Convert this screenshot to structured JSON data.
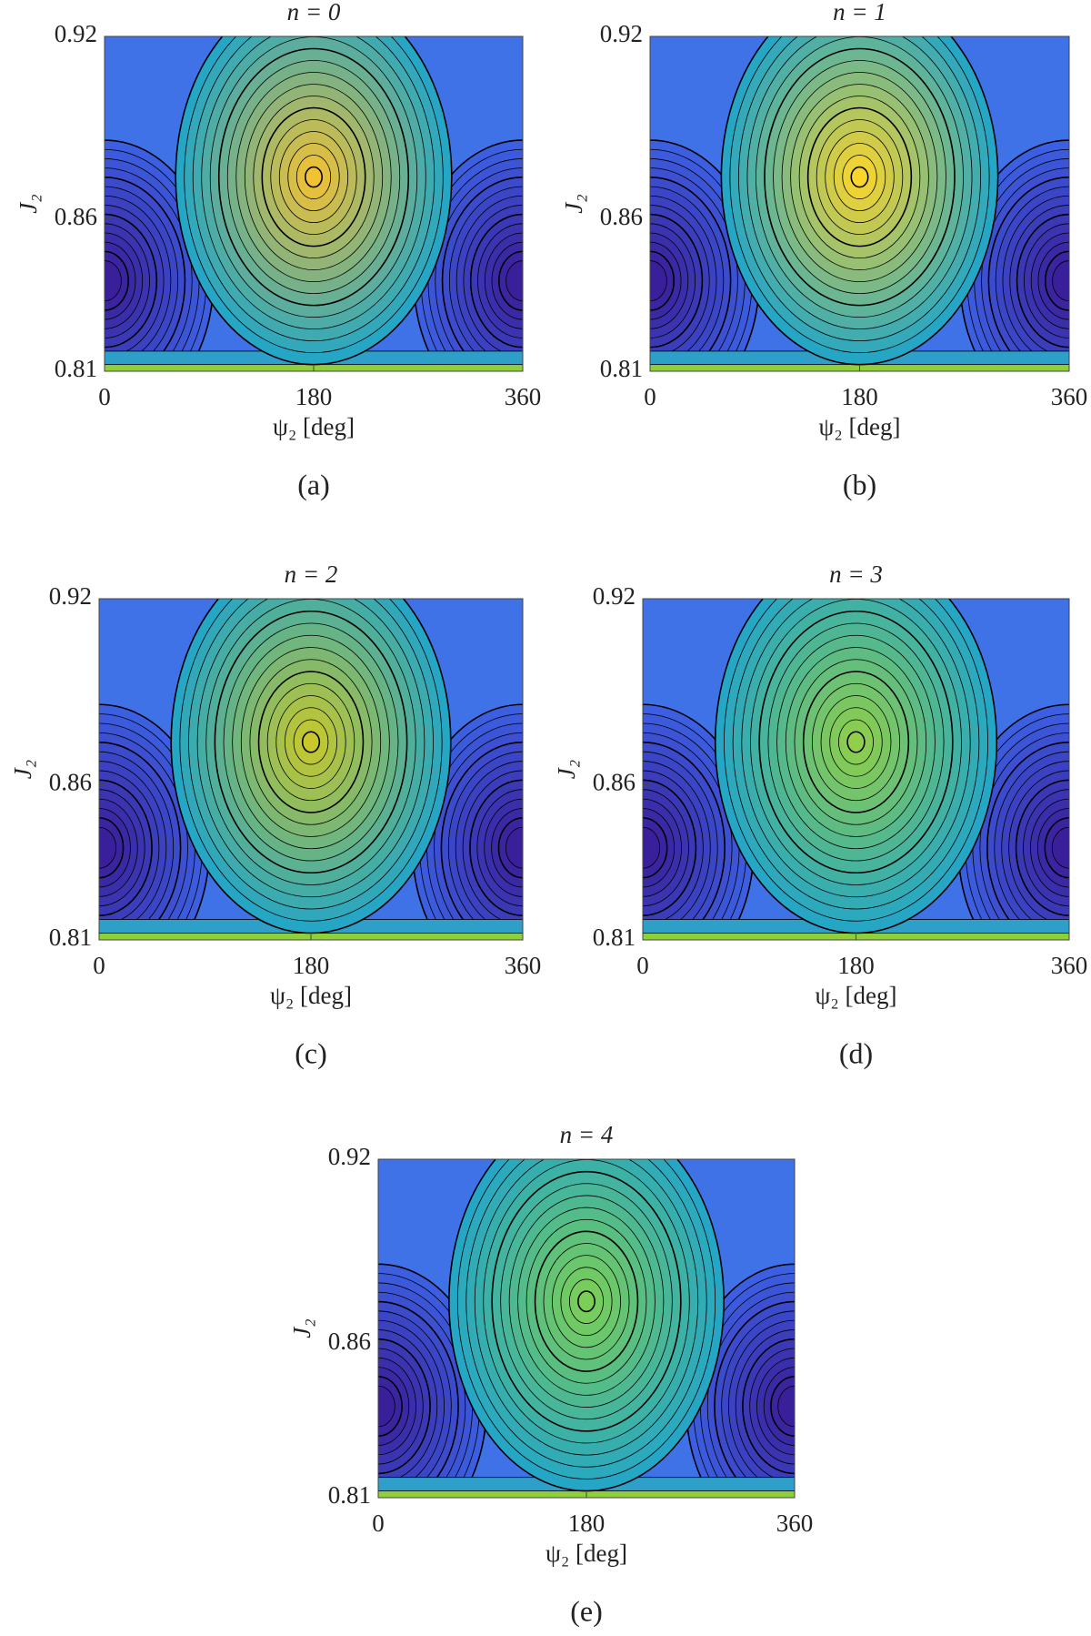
{
  "chart_data": [
    {
      "type": "contour",
      "title": "n = 0",
      "caption": "(a)",
      "xlabel": "ψ₂ [deg]",
      "ylabel": "J₂",
      "xlim": [
        0,
        360
      ],
      "xticks": [
        0,
        180,
        360
      ],
      "ylim": [
        0.81,
        0.92
      ],
      "yticks": [
        0.81,
        0.86,
        0.92
      ],
      "peak_color": "#f2c233"
    },
    {
      "type": "contour",
      "title": "n = 1",
      "caption": "(b)",
      "xlabel": "ψ₂ [deg]",
      "ylabel": "J₂",
      "xlim": [
        0,
        360
      ],
      "xticks": [
        0,
        180,
        360
      ],
      "ylim": [
        0.81,
        0.92
      ],
      "yticks": [
        0.81,
        0.86,
        0.92
      ],
      "peak_color": "#fbd62a"
    },
    {
      "type": "contour",
      "title": "n = 2",
      "caption": "(c)",
      "xlabel": "ψ₂ [deg]",
      "ylabel": "J₂",
      "xlim": [
        0,
        360
      ],
      "xticks": [
        0,
        180,
        360
      ],
      "ylim": [
        0.81,
        0.92
      ],
      "yticks": [
        0.81,
        0.86,
        0.92
      ],
      "peak_color": "#c8c82a"
    },
    {
      "type": "contour",
      "title": "n = 3",
      "caption": "(d)",
      "xlabel": "ψ₂ [deg]",
      "ylabel": "J₂",
      "xlim": [
        0,
        360
      ],
      "xticks": [
        0,
        180,
        360
      ],
      "ylim": [
        0.81,
        0.92
      ],
      "yticks": [
        0.81,
        0.86,
        0.92
      ],
      "peak_color": "#8fcf4a"
    },
    {
      "type": "contour",
      "title": "n = 4",
      "caption": "(e)",
      "xlabel": "ψ₂ [deg]",
      "ylabel": "J₂",
      "xlim": [
        0,
        360
      ],
      "xticks": [
        0,
        180,
        360
      ],
      "ylim": [
        0.81,
        0.92
      ],
      "yticks": [
        0.81,
        0.86,
        0.92
      ],
      "peak_color": "#7ccf55"
    }
  ]
}
